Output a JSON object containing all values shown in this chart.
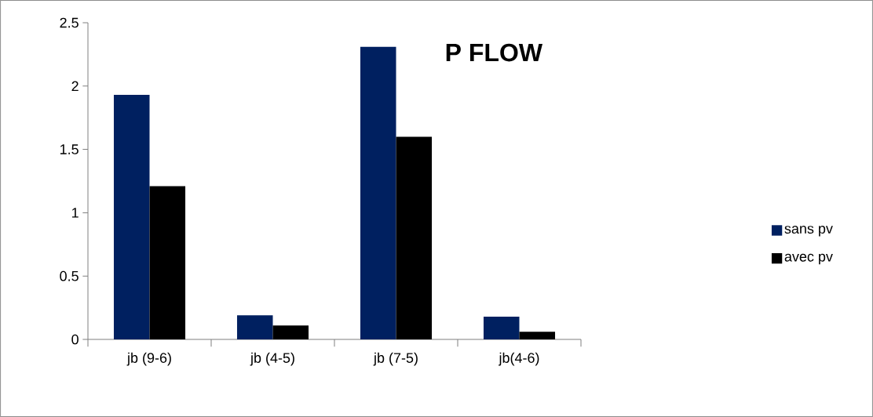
{
  "chart_data": {
    "type": "bar",
    "title": "P FLOW",
    "categories": [
      "jb (9-6)",
      "jb (4-5)",
      "jb (7-5)",
      "jb(4-6)"
    ],
    "series": [
      {
        "name": "sans pv",
        "color": "#002060",
        "values": [
          1.93,
          0.19,
          2.31,
          0.18
        ]
      },
      {
        "name": "avec pv",
        "color": "#000000",
        "values": [
          1.21,
          0.11,
          1.6,
          0.06
        ]
      }
    ],
    "ylim": [
      0,
      2.5
    ],
    "yticks": [
      0,
      0.5,
      1,
      1.5,
      2,
      2.5
    ],
    "legend": "right"
  }
}
